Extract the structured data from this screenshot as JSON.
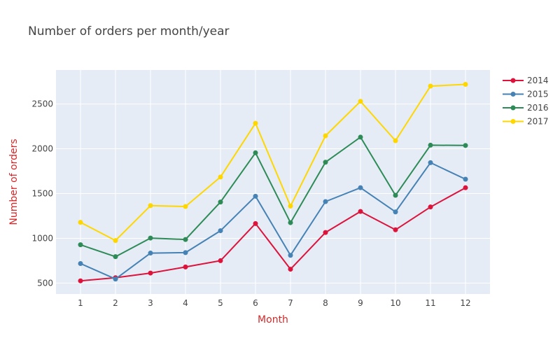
{
  "chart_data": {
    "type": "line",
    "title": "Number of orders per month/year",
    "xlabel": "Month",
    "ylabel": "Number of orders",
    "x": [
      1,
      2,
      3,
      4,
      5,
      6,
      7,
      8,
      9,
      10,
      11,
      12
    ],
    "xlim": [
      0.3,
      12.7
    ],
    "ylim": [
      378,
      2880
    ],
    "yticks": [
      500,
      1000,
      1500,
      2000,
      2500
    ],
    "grid": true,
    "legend_position": "top-right",
    "series": [
      {
        "name": "2014",
        "color": "#dc143c",
        "values": [
          525,
          560,
          612,
          680,
          750,
          1165,
          655,
          1065,
          1300,
          1095,
          1350,
          1565
        ]
      },
      {
        "name": "2015",
        "color": "#4682b4",
        "values": [
          718,
          545,
          835,
          840,
          1085,
          1470,
          810,
          1410,
          1565,
          1295,
          1845,
          1660
        ]
      },
      {
        "name": "2016",
        "color": "#2e8b57",
        "values": [
          928,
          795,
          1003,
          987,
          1405,
          1955,
          1175,
          1850,
          2130,
          1480,
          2040,
          2037
        ]
      },
      {
        "name": "2017",
        "color": "#ffd700",
        "values": [
          1178,
          975,
          1365,
          1355,
          1685,
          2285,
          1360,
          2145,
          2530,
          2090,
          2700,
          2720
        ]
      }
    ]
  }
}
